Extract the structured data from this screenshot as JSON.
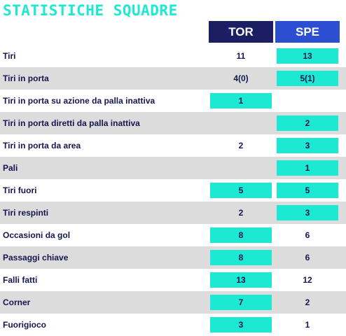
{
  "title": "STATISTICHE SQUADRE",
  "teams": {
    "home": "TOR",
    "away": "SPE"
  },
  "colors": {
    "title": "#1de9d3",
    "highlight": "#1de9d3",
    "home_header": "#1b1e62",
    "away_header": "#2c4fd1",
    "text": "#14164f",
    "row_shade": "#dcdcdc"
  },
  "rows": [
    {
      "label": "Tiri",
      "home": "11",
      "away": "13",
      "highlight": "away"
    },
    {
      "label": "Tiri in porta",
      "home": "4(0)",
      "away": "5(1)",
      "highlight": "away"
    },
    {
      "label": "Tiri in porta su azione da palla inattiva",
      "home": "1",
      "away": "",
      "highlight": "home"
    },
    {
      "label": "Tiri in porta diretti da palla inattiva",
      "home": "",
      "away": "2",
      "highlight": "away"
    },
    {
      "label": "Tiri in porta da area",
      "home": "2",
      "away": "3",
      "highlight": "away"
    },
    {
      "label": "Pali",
      "home": "",
      "away": "1",
      "highlight": "away"
    },
    {
      "label": "Tiri fuori",
      "home": "5",
      "away": "5",
      "highlight": "both"
    },
    {
      "label": "Tiri respinti",
      "home": "2",
      "away": "3",
      "highlight": "away"
    },
    {
      "label": "Occasioni da gol",
      "home": "8",
      "away": "6",
      "highlight": "home"
    },
    {
      "label": "Passaggi chiave",
      "home": "8",
      "away": "6",
      "highlight": "home"
    },
    {
      "label": "Falli fatti",
      "home": "13",
      "away": "12",
      "highlight": "home"
    },
    {
      "label": "Corner",
      "home": "7",
      "away": "2",
      "highlight": "home"
    },
    {
      "label": "Fuorigioco",
      "home": "3",
      "away": "1",
      "highlight": "home"
    }
  ]
}
